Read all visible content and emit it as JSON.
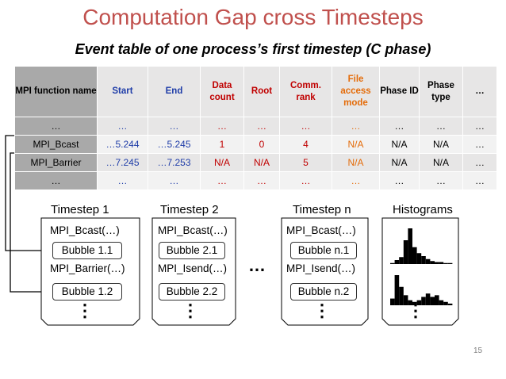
{
  "title": "Computation Gap cross Timesteps",
  "subtitle": "Event table of one process’s first timestep (C phase)",
  "table": {
    "headers": [
      {
        "text": "MPI function name",
        "color": "#000000"
      },
      {
        "text": "Start",
        "color": "#1f3da8"
      },
      {
        "text": "End",
        "color": "#1f3da8"
      },
      {
        "text": "Data count",
        "color": "#c00000"
      },
      {
        "text": "Root",
        "color": "#c00000"
      },
      {
        "text": "Comm. rank",
        "color": "#c00000"
      },
      {
        "text": "File access mode",
        "color": "#e46c0a"
      },
      {
        "text": "Phase ID",
        "color": "#000000"
      },
      {
        "text": "Phase type",
        "color": "#000000"
      },
      {
        "text": "…",
        "color": "#000000"
      }
    ],
    "rows": [
      [
        "…",
        "…",
        "…",
        "…",
        "…",
        "…",
        "…",
        "…",
        "…",
        "…"
      ],
      [
        "MPI_Bcast",
        "…5.244",
        "…5.245",
        "1",
        "0",
        "4",
        "N/A",
        "N/A",
        "N/A",
        "…"
      ],
      [
        "MPI_Barrier",
        "…7.245",
        "…7.253",
        "N/A",
        "N/A",
        "5",
        "N/A",
        "N/A",
        "N/A",
        "…"
      ],
      [
        "…",
        "…",
        "…",
        "…",
        "…",
        "…",
        "…",
        "…",
        "…",
        "…"
      ]
    ]
  },
  "timesteps": [
    {
      "label": "Timestep 1",
      "call1": "MPI_Bcast(…)",
      "bubble1": "Bubble 1.1",
      "call2": "MPI_Barrier(…)",
      "bubble2": "Bubble 1.2",
      "dots": "⋮"
    },
    {
      "label": "Timestep 2",
      "call1": "MPI_Bcast(…)",
      "bubble1": "Bubble 2.1",
      "call2": "MPI_Isend(…)",
      "bubble2": "Bubble 2.2",
      "dots": "⋮"
    },
    {
      "label": "Timestep n",
      "call1": "MPI_Bcast(…)",
      "bubble1": "Bubble n.1",
      "call2": "MPI_Isend(…)",
      "bubble2": "Bubble n.2",
      "dots": "⋮"
    }
  ],
  "middle_ellipsis": "…",
  "histograms": {
    "label": "Histograms",
    "dots": "⋮",
    "hist1": [
      1,
      4,
      7,
      24,
      36,
      17,
      11,
      8,
      5,
      3,
      2,
      2,
      1,
      1
    ],
    "hist2": [
      4,
      18,
      11,
      6,
      3,
      2,
      3,
      5,
      7,
      5,
      6,
      3,
      2,
      1
    ]
  },
  "page_number": "15"
}
